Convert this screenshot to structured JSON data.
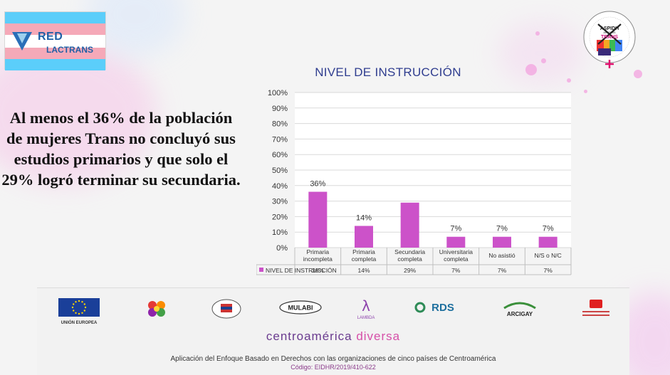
{
  "logos": {
    "left_top": "RED",
    "left_bottom": "LACTRANS",
    "right_name": "ASPIDH",
    "right_sub": "ARCOIRIS",
    "right_word": "TRANS"
  },
  "headline": "Al menos el 36% de la población de mujeres Trans no concluyó sus estudios primarios y que solo el 29% logró terminar su secundaria.",
  "chart_data": {
    "type": "bar",
    "title": "NIVEL DE INSTRUCCIÓN",
    "categories": [
      [
        "Primaria",
        "incompleta"
      ],
      [
        "Primaria",
        "completa"
      ],
      [
        "Secundaria",
        "completa"
      ],
      [
        "Universitaria",
        "completa"
      ],
      [
        "No asistió"
      ],
      [
        "N/S o N/C"
      ]
    ],
    "series": [
      {
        "name": "NIVEL DE INSTRUCCIÓN",
        "values": [
          36,
          14,
          29,
          7,
          7,
          7
        ],
        "color": "#cc52c9"
      }
    ],
    "data_labels": [
      "36%",
      "14%",
      "",
      "7%",
      "7%",
      "7%"
    ],
    "table_values": [
      "36%",
      "14%",
      "29%",
      "7%",
      "7%",
      "7%"
    ],
    "y_ticks": [
      "0%",
      "10%",
      "20%",
      "30%",
      "40%",
      "50%",
      "60%",
      "70%",
      "80%",
      "90%",
      "100%"
    ],
    "ylim": [
      0,
      100
    ],
    "grid": true,
    "legend": "data-table"
  },
  "footer": {
    "sponsors": [
      {
        "id": "union-europea",
        "label": "UNIÓN EUROPEA"
      },
      {
        "id": "sponsor-2",
        "label": ""
      },
      {
        "id": "sponsor-3",
        "label": ""
      },
      {
        "id": "mulabi",
        "label": "MULABI"
      },
      {
        "id": "lambda",
        "label": "LAMBDA"
      },
      {
        "id": "rds",
        "label": "RDS"
      },
      {
        "id": "arcigay",
        "label": "ARCIGAY"
      },
      {
        "id": "sponsor-8",
        "label": ""
      }
    ],
    "brand_left": "centroamérica",
    "brand_right": "diversa",
    "caption": "Aplicación del Enfoque Basado en Derechos con las organizaciones de cinco países de Centroamérica",
    "code": "Código: EIDHR/2019/410-622"
  },
  "colors": {
    "bar": "#cc52c9",
    "title": "#2f3d8f",
    "trans_blue": "#5bcefa",
    "trans_pink": "#f5a9b8"
  }
}
